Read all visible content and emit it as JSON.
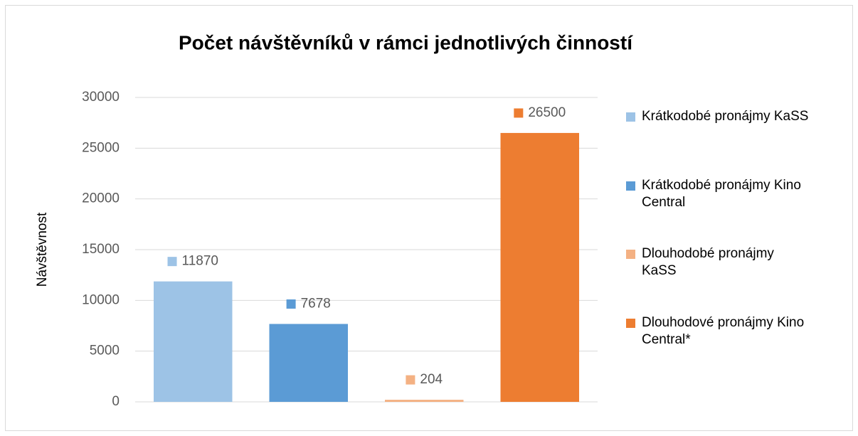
{
  "chart_data": {
    "type": "bar",
    "title": "Počet návštěvníků v rámci jednotlivých činností",
    "y_label": "Návštěvnost",
    "categories": [
      null
    ],
    "series": [
      {
        "name": "Krátkodobé pronájmy KaSS",
        "color": "#9dc3e6",
        "values": [
          11870
        ]
      },
      {
        "name": "Krátkodobé pronájmy Kino Central",
        "color": "#5b9bd5",
        "values": [
          7678
        ]
      },
      {
        "name": "Dlouhodobé pronájmy KaSS",
        "color": "#f4b183",
        "values": [
          204
        ]
      },
      {
        "name": "Dlouhodové pronájmy Kino Central*",
        "color": "#ed7d31",
        "values": [
          26500
        ]
      }
    ],
    "ylim": [
      0,
      30000
    ],
    "yticks": [
      0,
      5000,
      10000,
      15000,
      20000,
      25000,
      30000
    ],
    "grid": true,
    "legend": "right"
  }
}
